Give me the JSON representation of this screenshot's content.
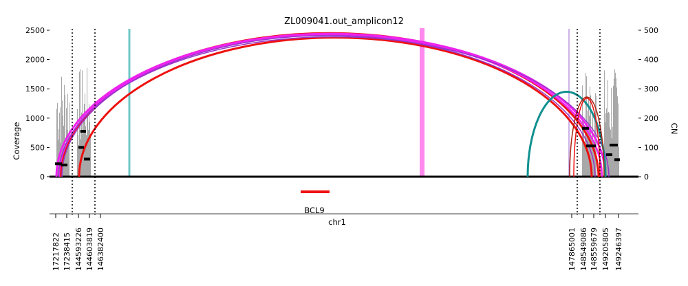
{
  "chart_data": {
    "type": "amplicon-coverage-arc",
    "title": "ZL009041.out_amplicon12",
    "ylabel_left": "Coverage",
    "ylabel_right": "CN",
    "xlabel": "chr1",
    "ylim_left": [
      0,
      2500
    ],
    "ylim_right": [
      0,
      500
    ],
    "yticks_left": [
      "0",
      "500",
      "1000",
      "1500",
      "2000",
      "2500"
    ],
    "yticks_right": [
      "0",
      "100",
      "200",
      "300",
      "400",
      "500"
    ],
    "gene": "BCL9",
    "colors": {
      "coverage": "#9e9e9e",
      "red_arc": "#ee1111",
      "magenta_arc": "#ee22ee",
      "purple_arc": "#9933cc",
      "teal_arc": "#119090",
      "brown_arc": "#aa2211",
      "cyan_line": "#6fc7c7",
      "pink_band": "#ff88ee",
      "gene_bar": "#ee1111",
      "segment_line": "#000000"
    },
    "breakpoint_labels": [
      "17217822",
      "17238415",
      "144593226",
      "144603819",
      "146382400",
      "147865001",
      "148549086",
      "148559679",
      "149205805",
      "149246397"
    ],
    "dotted_boundaries": [
      {
        "name": "boundary-1",
        "label": "segment-1-start"
      },
      {
        "name": "boundary-2",
        "label": "segment-1-end"
      },
      {
        "name": "boundary-3",
        "label": "segment-2-start"
      },
      {
        "name": "boundary-4",
        "label": "segment-2-end"
      }
    ],
    "arcs": [
      {
        "name": "arc-red-1",
        "color": "red_arc",
        "height_cn": 475,
        "width": 3
      },
      {
        "name": "arc-red-2",
        "color": "red_arc",
        "height_cn": 490,
        "width": 3
      },
      {
        "name": "arc-magenta-1",
        "color": "magenta_arc",
        "height_cn": 488,
        "width": 3
      },
      {
        "name": "arc-magenta-2",
        "color": "magenta_arc",
        "height_cn": 485,
        "width": 2.5
      },
      {
        "name": "arc-purple-1",
        "color": "purple_arc",
        "height_cn": 482,
        "width": 1.5
      },
      {
        "name": "arc-purple-2",
        "color": "purple_arc",
        "height_cn": 478,
        "width": 1.5
      },
      {
        "name": "arc-teal-1",
        "color": "teal_arc",
        "height_cn": 290,
        "width": 3
      },
      {
        "name": "arc-brown-1",
        "color": "brown_arc",
        "height_cn": 272,
        "width": 1.5
      },
      {
        "name": "arc-brown-2",
        "color": "red_arc",
        "height_cn": 268,
        "width": 1.5
      }
    ],
    "cn_segments_cn": [
      44,
      40,
      100,
      155,
      60,
      165,
      105,
      75,
      108,
      58
    ]
  }
}
